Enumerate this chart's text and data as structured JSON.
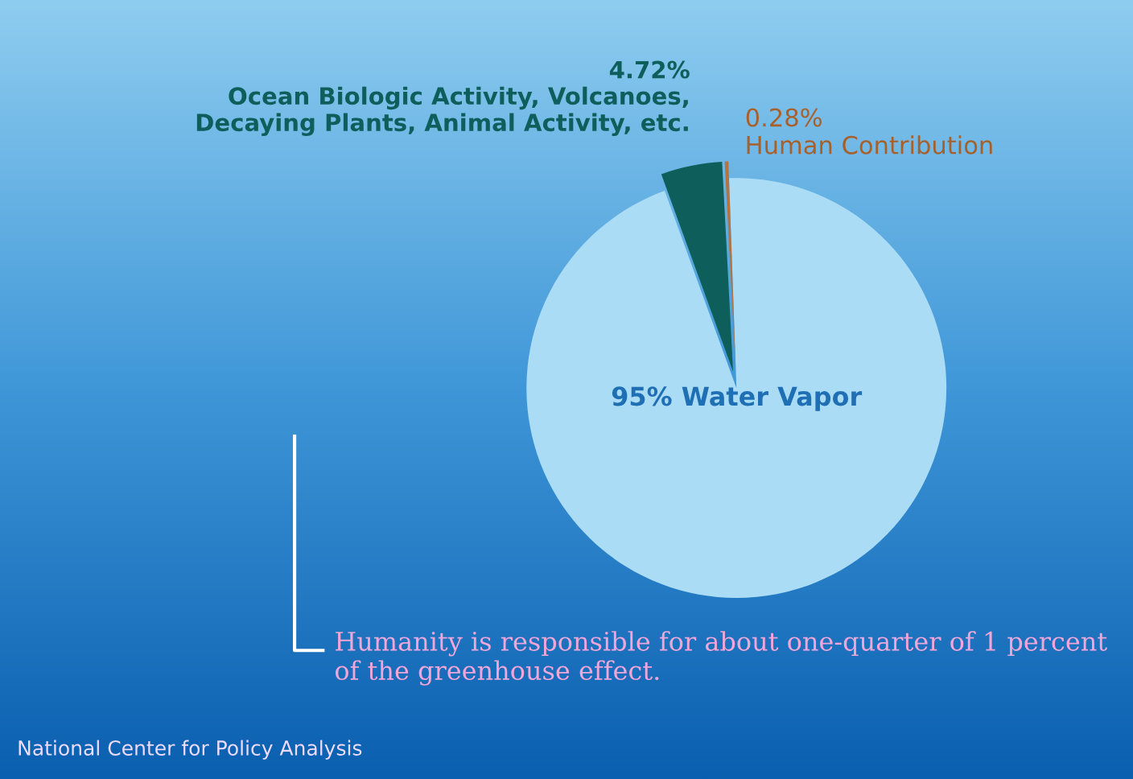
{
  "chart_data": {
    "type": "pie",
    "categories": [
      "Water Vapor",
      "Ocean Biologic Activity, Volcanoes,\nDecaying Plants, Animal Activity, etc.",
      "Human Contribution"
    ],
    "values": [
      95,
      4.72,
      0.28
    ],
    "value_labels": [
      "95%",
      "4.72%",
      "0.28%"
    ],
    "colors": [
      "#aadcf6",
      "#0e5e5c",
      "#b4733f"
    ],
    "legend": false,
    "annotations": [
      "Humanity is responsible for about one-quarter of 1 percent\nof the greenhouse effect.",
      "National Center for Policy Analysis"
    ]
  }
}
